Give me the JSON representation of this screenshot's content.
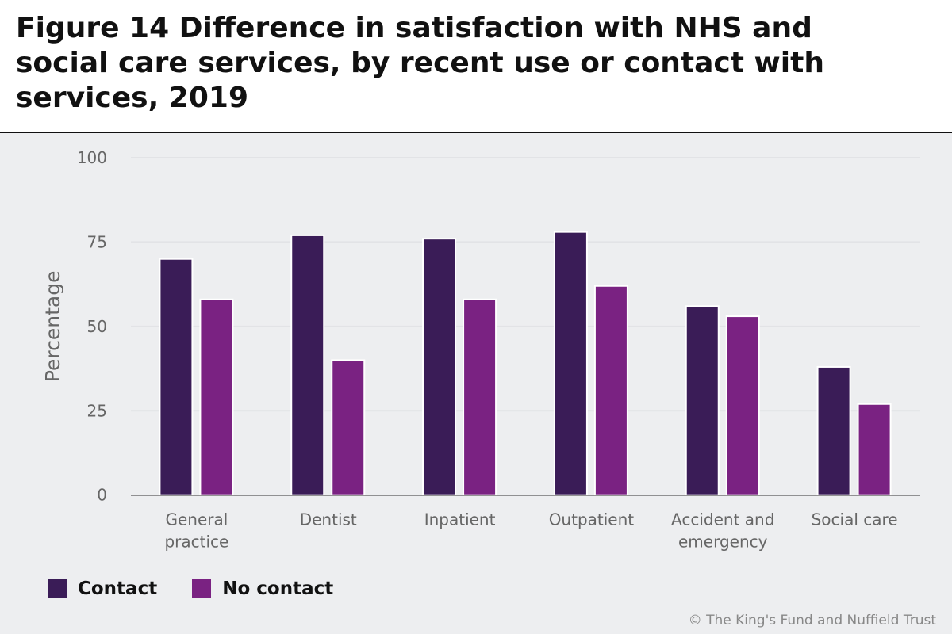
{
  "title": "Figure 14 Difference in satisfaction with NHS and social care services, by recent use or contact with services, 2019",
  "credit": "© The King's Fund and Nuffield Trust",
  "chart_data": {
    "type": "bar",
    "title": "Figure 14 Difference in satisfaction with NHS and social care services, by recent use or contact with services, 2019",
    "xlabel": "",
    "ylabel": "Percentage",
    "ylim": [
      0,
      100
    ],
    "yticks": [
      "0",
      "25",
      "50",
      "75",
      "100"
    ],
    "grid": true,
    "legend_placement": "bottom-left",
    "categories": [
      [
        "General",
        "practice"
      ],
      [
        "Dentist"
      ],
      [
        "Inpatient"
      ],
      [
        "Outpatient"
      ],
      [
        "Accident and",
        "emergency"
      ],
      [
        "Social care"
      ]
    ],
    "series": [
      {
        "name": "Contact",
        "color": "#3a1c57",
        "values": [
          70,
          77,
          76,
          78,
          56,
          38
        ]
      },
      {
        "name": "No contact",
        "color": "#7a2282",
        "values": [
          58,
          40,
          58,
          62,
          53,
          27
        ]
      }
    ]
  }
}
